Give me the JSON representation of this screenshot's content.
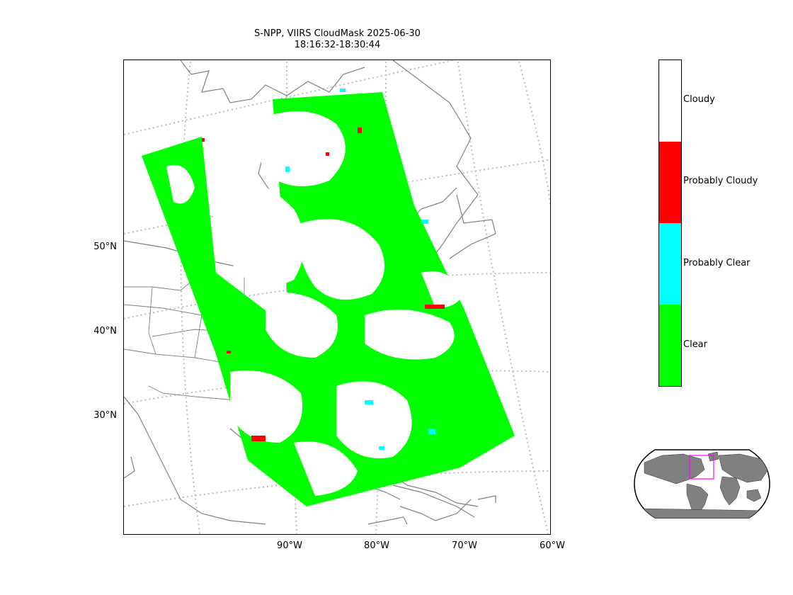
{
  "title": {
    "line1": "S-NPP, VIIRS CloudMask 2025-06-30",
    "line2": "18:16:32-18:30:44"
  },
  "axes": {
    "lat_labels": [
      "50°N",
      "40°N",
      "30°N"
    ],
    "lon_labels": [
      "90°W",
      "80°W",
      "70°W",
      "60°W"
    ]
  },
  "colorbar": {
    "categories": [
      {
        "label": "Cloudy",
        "color": "#ffffff"
      },
      {
        "label": "Probably Cloudy",
        "color": "#ff0000"
      },
      {
        "label": "Probably Clear",
        "color": "#00ffff"
      },
      {
        "label": "Clear",
        "color": "#00ff00"
      }
    ]
  },
  "colors": {
    "coastline": "#808080",
    "graticule": "#bbbbbb",
    "inset_land": "#808080",
    "inset_box": "#ff00ff"
  }
}
